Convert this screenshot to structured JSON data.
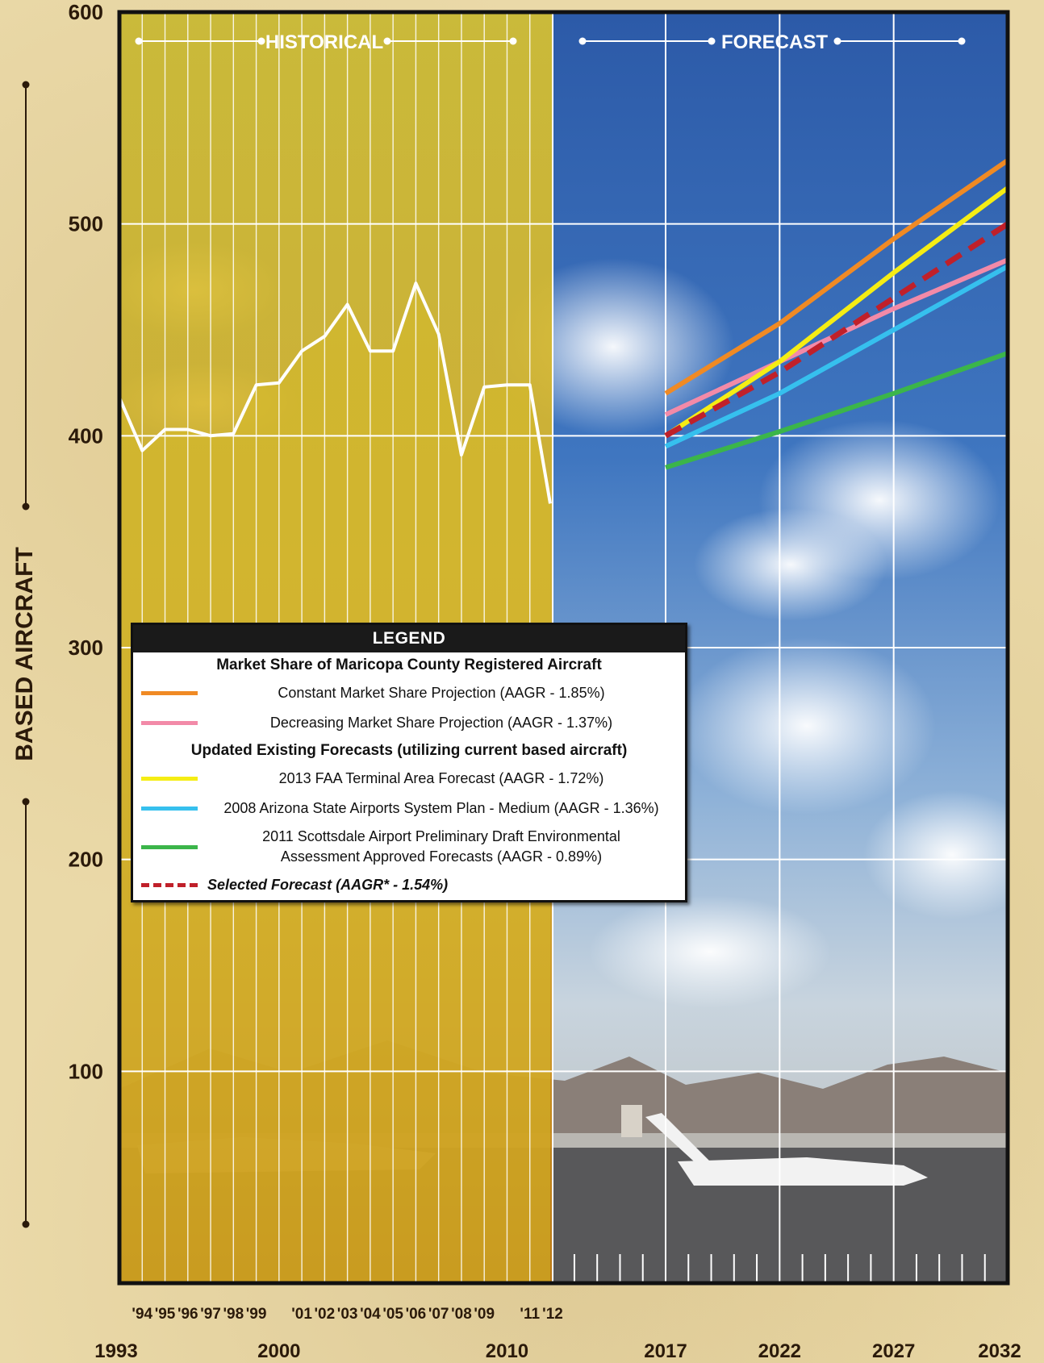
{
  "chart_data": {
    "type": "line",
    "ylabel": "BASED AIRCRAFT",
    "ylim": [
      0,
      600
    ],
    "y_ticks": [
      100,
      200,
      300,
      400,
      500,
      600
    ],
    "xlim": [
      1993,
      2032
    ],
    "x_major_ticks": [
      1993,
      2000,
      2010,
      2017,
      2022,
      2027,
      2032
    ],
    "x_minor_tick_labels": [
      {
        "x": 1994,
        "label": "'94"
      },
      {
        "x": 1995,
        "label": "'95"
      },
      {
        "x": 1996,
        "label": "'96"
      },
      {
        "x": 1997,
        "label": "'97"
      },
      {
        "x": 1998,
        "label": "'98"
      },
      {
        "x": 1999,
        "label": "'99"
      },
      {
        "x": 2001,
        "label": "'01"
      },
      {
        "x": 2002,
        "label": "'02"
      },
      {
        "x": 2003,
        "label": "'03"
      },
      {
        "x": 2004,
        "label": "'04"
      },
      {
        "x": 2005,
        "label": "'05"
      },
      {
        "x": 2006,
        "label": "'06"
      },
      {
        "x": 2007,
        "label": "'07"
      },
      {
        "x": 2008,
        "label": "'08"
      },
      {
        "x": 2009,
        "label": "'09"
      },
      {
        "x": 2011,
        "label": "'11"
      },
      {
        "x": 2012,
        "label": "'12"
      }
    ],
    "periods": [
      {
        "label": "HISTORICAL",
        "from": 1993,
        "to": 2012
      },
      {
        "label": "FORECAST",
        "from": 2012,
        "to": 2032
      }
    ],
    "grid": true,
    "historical": {
      "x": [
        1993,
        1994,
        1995,
        1996,
        1997,
        1998,
        1999,
        2000,
        2001,
        2002,
        2003,
        2004,
        2005,
        2006,
        2007,
        2008,
        2009,
        2010,
        2011,
        2012
      ],
      "values": [
        418,
        393,
        403,
        403,
        400,
        401,
        424,
        425,
        440,
        447,
        462,
        440,
        440,
        472,
        448,
        391,
        423,
        424,
        424,
        368
      ]
    },
    "legend": {
      "title": "LEGEND",
      "groups": [
        {
          "heading": "Market Share of Maricopa County Registered Aircraft",
          "series": [
            {
              "name": "Constant Market Share Projection (AAGR - 1.85%)",
              "color": "#f08a24",
              "x": [
                2017,
                2022,
                2027,
                2032
              ],
              "values": [
                420,
                453,
                493,
                530
              ]
            },
            {
              "name": "Decreasing Market Share Projection (AAGR - 1.37%)",
              "color": "#f28aa8",
              "x": [
                2017,
                2022,
                2027,
                2032
              ],
              "values": [
                410,
                435,
                460,
                483
              ]
            }
          ]
        },
        {
          "heading": "Updated Existing Forecasts (utilizing current based aircraft)",
          "series": [
            {
              "name": "2013 FAA Terminal Area Forecast (AAGR - 1.72%)",
              "color": "#f5ed14",
              "x": [
                2017,
                2022,
                2027,
                2032
              ],
              "values": [
                400,
                435,
                477,
                517
              ]
            },
            {
              "name": "2008 Arizona State Airports System Plan - Medium (AAGR - 1.36%)",
              "color": "#36c0ee",
              "x": [
                2017,
                2022,
                2027,
                2032
              ],
              "values": [
                395,
                420,
                450,
                480
              ]
            },
            {
              "name": "2011 Scottsdale Airport Preliminary Draft Environmental Assessment Approved Forecasts (AAGR - 0.89%)",
              "name_line1": "2011 Scottsdale Airport Preliminary Draft Environmental",
              "name_line2": "Assessment Approved Forecasts (AAGR - 0.89%)",
              "color": "#3bb54a",
              "x": [
                2017,
                2022,
                2027,
                2032
              ],
              "values": [
                385,
                402,
                420,
                439
              ]
            }
          ]
        }
      ],
      "selected": {
        "name": "Selected Forecast (AAGR* - 1.54%)",
        "color": "#c0202a",
        "dashed": true,
        "x": [
          2017,
          2022,
          2027,
          2032
        ],
        "values": [
          400,
          430,
          465,
          500
        ]
      }
    }
  }
}
